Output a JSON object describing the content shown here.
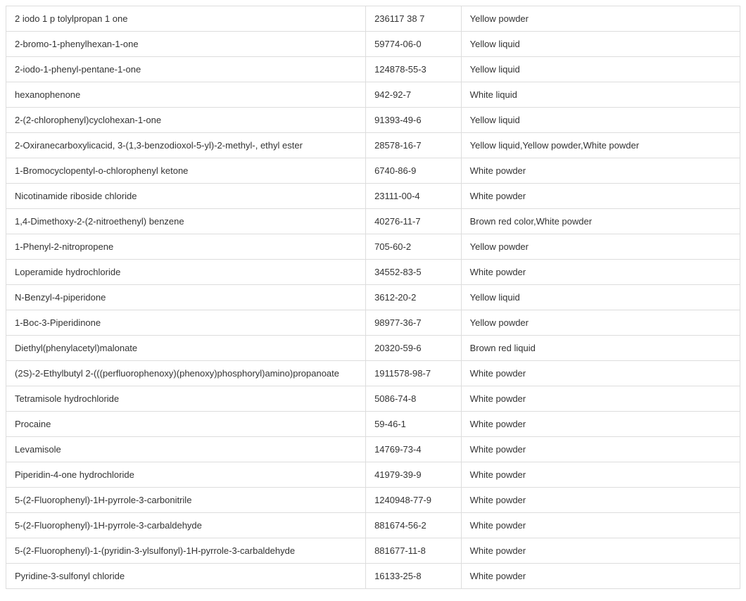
{
  "table": {
    "columns": [
      "name",
      "cas",
      "appearance"
    ],
    "column_widths": [
      "49%",
      "13%",
      "38%"
    ],
    "border_color": "#dddddd",
    "text_color": "#333333",
    "background_color": "#ffffff",
    "font_size": 13,
    "cell_padding": "10px 12px",
    "rows": [
      {
        "name": "2 iodo 1 p tolylpropan 1 one",
        "cas": "236117 38 7",
        "appearance": "Yellow powder"
      },
      {
        "name": "2-bromo-1-phenylhexan-1-one",
        "cas": "59774-06-0",
        "appearance": "Yellow liquid"
      },
      {
        "name": "2-iodo-1-phenyl-pentane-1-one",
        "cas": "124878-55-3",
        "appearance": "Yellow liquid"
      },
      {
        "name": "hexanophenone",
        "cas": "942-92-7",
        "appearance": "White liquid"
      },
      {
        "name": "2-(2-chlorophenyl)cyclohexan-1-one",
        "cas": "91393-49-6",
        "appearance": "Yellow liquid"
      },
      {
        "name": " 2-Oxiranecarboxylicacid, 3-(1,3-benzodioxol-5-yl)-2-methyl-, ethyl ester",
        "cas": "28578-16-7",
        "appearance": "Yellow liquid,Yellow powder,White powder"
      },
      {
        "name": "1-Bromocyclopentyl-o-chlorophenyl ketone",
        "cas": "6740-86-9",
        "appearance": "White powder"
      },
      {
        "name": "Nicotinamide riboside chloride",
        "cas": "23111-00-4",
        "appearance": "White powder"
      },
      {
        "name": "1,4-Dimethoxy-2-(2-nitroethenyl) benzene",
        "cas": "40276-11-7",
        "appearance": "Brown red color,White powder"
      },
      {
        "name": "1-Phenyl-2-nitropropene",
        "cas": "705-60-2",
        "appearance": "Yellow powder"
      },
      {
        "name": "Loperamide hydrochloride",
        "cas": "34552-83-5",
        "appearance": "White powder"
      },
      {
        "name": "N-Benzyl-4-piperidone",
        "cas": "3612-20-2",
        "appearance": "Yellow liquid"
      },
      {
        "name": "1-Boc-3-Piperidinone",
        "cas": "98977-36-7",
        "appearance": "Yellow powder"
      },
      {
        "name": "Diethyl(phenylacetyl)malonate",
        "cas": "20320-59-6",
        "appearance": "Brown red liquid"
      },
      {
        "name": "(2S)-2-Ethylbutyl 2-(((perfluorophenoxy)(phenoxy)phosphoryl)amino)propanoate",
        "cas": "1911578-98-7",
        "appearance": "White powder"
      },
      {
        "name": "Tetramisole hydrochloride",
        "cas": "5086-74-8",
        "appearance": "White powder"
      },
      {
        "name": "Procaine",
        "cas": "59-46-1",
        "appearance": "White powder"
      },
      {
        "name": "Levamisole",
        "cas": "14769-73-4",
        "appearance": "White powder"
      },
      {
        "name": "Piperidin-4-one hydrochloride",
        "cas": "41979-39-9",
        "appearance": "White powder"
      },
      {
        "name": "5-(2-Fluorophenyl)-1H-pyrrole-3-carbonitrile",
        "cas": "1240948-77-9",
        "appearance": "White powder"
      },
      {
        "name": "5-(2-Fluorophenyl)-1H-pyrrole-3-carbaldehyde",
        "cas": "881674-56-2",
        "appearance": "White powder"
      },
      {
        "name": "5-(2-Fluorophenyl)-1-(pyridin-3-ylsulfonyl)-1H-pyrrole-3-carbaldehyde",
        "cas": "881677-11-8",
        "appearance": "White powder"
      },
      {
        "name": "Pyridine-3-sulfonyl chloride",
        "cas": "16133-25-8",
        "appearance": "White powder"
      }
    ]
  }
}
